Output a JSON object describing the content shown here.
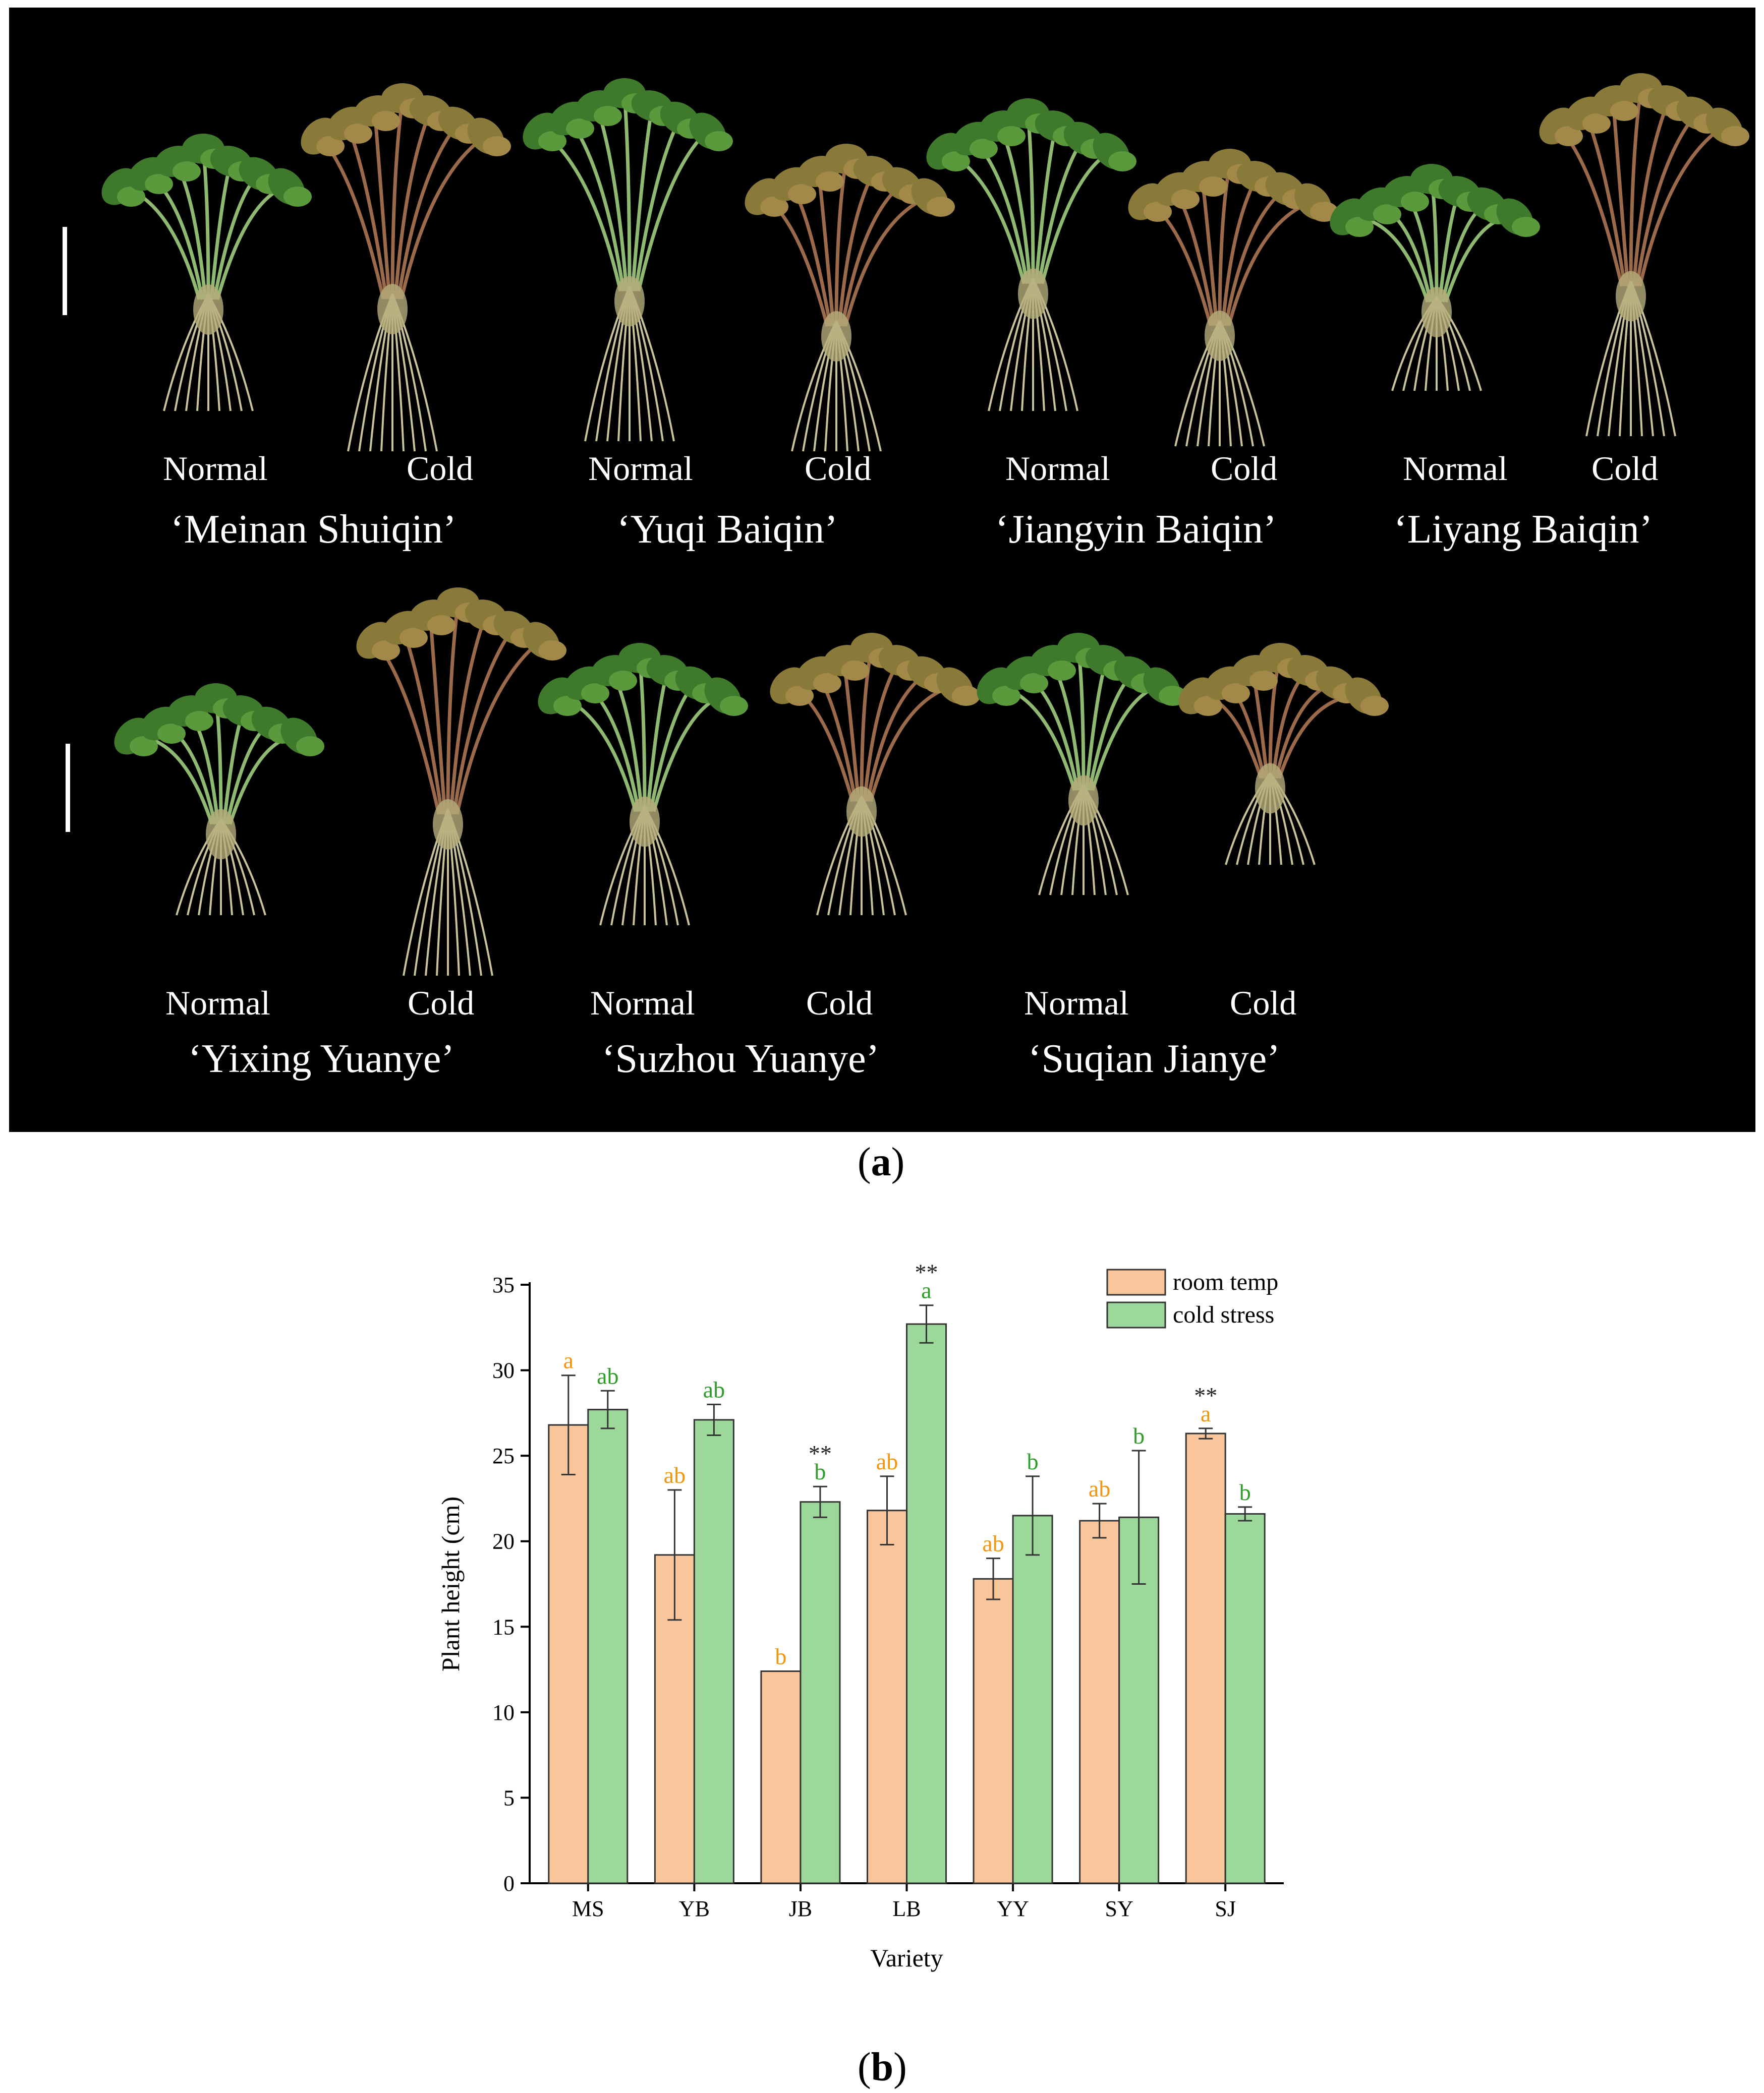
{
  "figure": {
    "panel_a_letter": "a",
    "panel_b_letter": "b",
    "condition_labels": {
      "normal": "Normal",
      "cold": "Cold"
    },
    "varieties_row1": [
      "‘Meinan Shuiqin’",
      "‘Yuqi Baiqin’",
      "‘Jiangyin Baiqin’",
      "‘Liyang Baiqin’"
    ],
    "varieties_row2": [
      "‘Yixing Yuanye’",
      "‘Suzhou Yuanye’",
      "‘Suqian Jianye’"
    ],
    "colors": {
      "room_temp": "#f9c59a",
      "cold_stress": "#9dd89b",
      "room_letter": "#f2960f",
      "cold_letter": "#2e9d2a",
      "photo_bg": "#000000"
    }
  },
  "chart_data": {
    "type": "bar",
    "xlabel": "Variety",
    "ylabel": "Plant height (cm)",
    "ylim": [
      0,
      35
    ],
    "yticks": [
      0,
      5,
      10,
      15,
      20,
      25,
      30,
      35
    ],
    "categories": [
      "MS",
      "YB",
      "JB",
      "LB",
      "YY",
      "SY",
      "SJ"
    ],
    "legend_position": "top-right",
    "series": [
      {
        "name": "room temp",
        "values": [
          26.8,
          19.2,
          12.4,
          21.8,
          17.8,
          21.2,
          26.3
        ],
        "errors": [
          2.9,
          3.8,
          0,
          2.0,
          1.2,
          1.0,
          0.3
        ],
        "letters": [
          "a",
          "ab",
          "b",
          "ab",
          "ab",
          "ab",
          "a"
        ],
        "stars": [
          "",
          "",
          "",
          "",
          "",
          "",
          "**"
        ]
      },
      {
        "name": "cold stress",
        "values": [
          27.7,
          27.1,
          22.3,
          32.7,
          21.5,
          21.4,
          21.6
        ],
        "errors": [
          1.1,
          0.9,
          0.9,
          1.1,
          2.3,
          3.9,
          0.4
        ],
        "letters": [
          "ab",
          "ab",
          "b",
          "a",
          "b",
          "b",
          "b"
        ],
        "stars": [
          "",
          "",
          "**",
          "**",
          "",
          "",
          ""
        ]
      }
    ]
  }
}
